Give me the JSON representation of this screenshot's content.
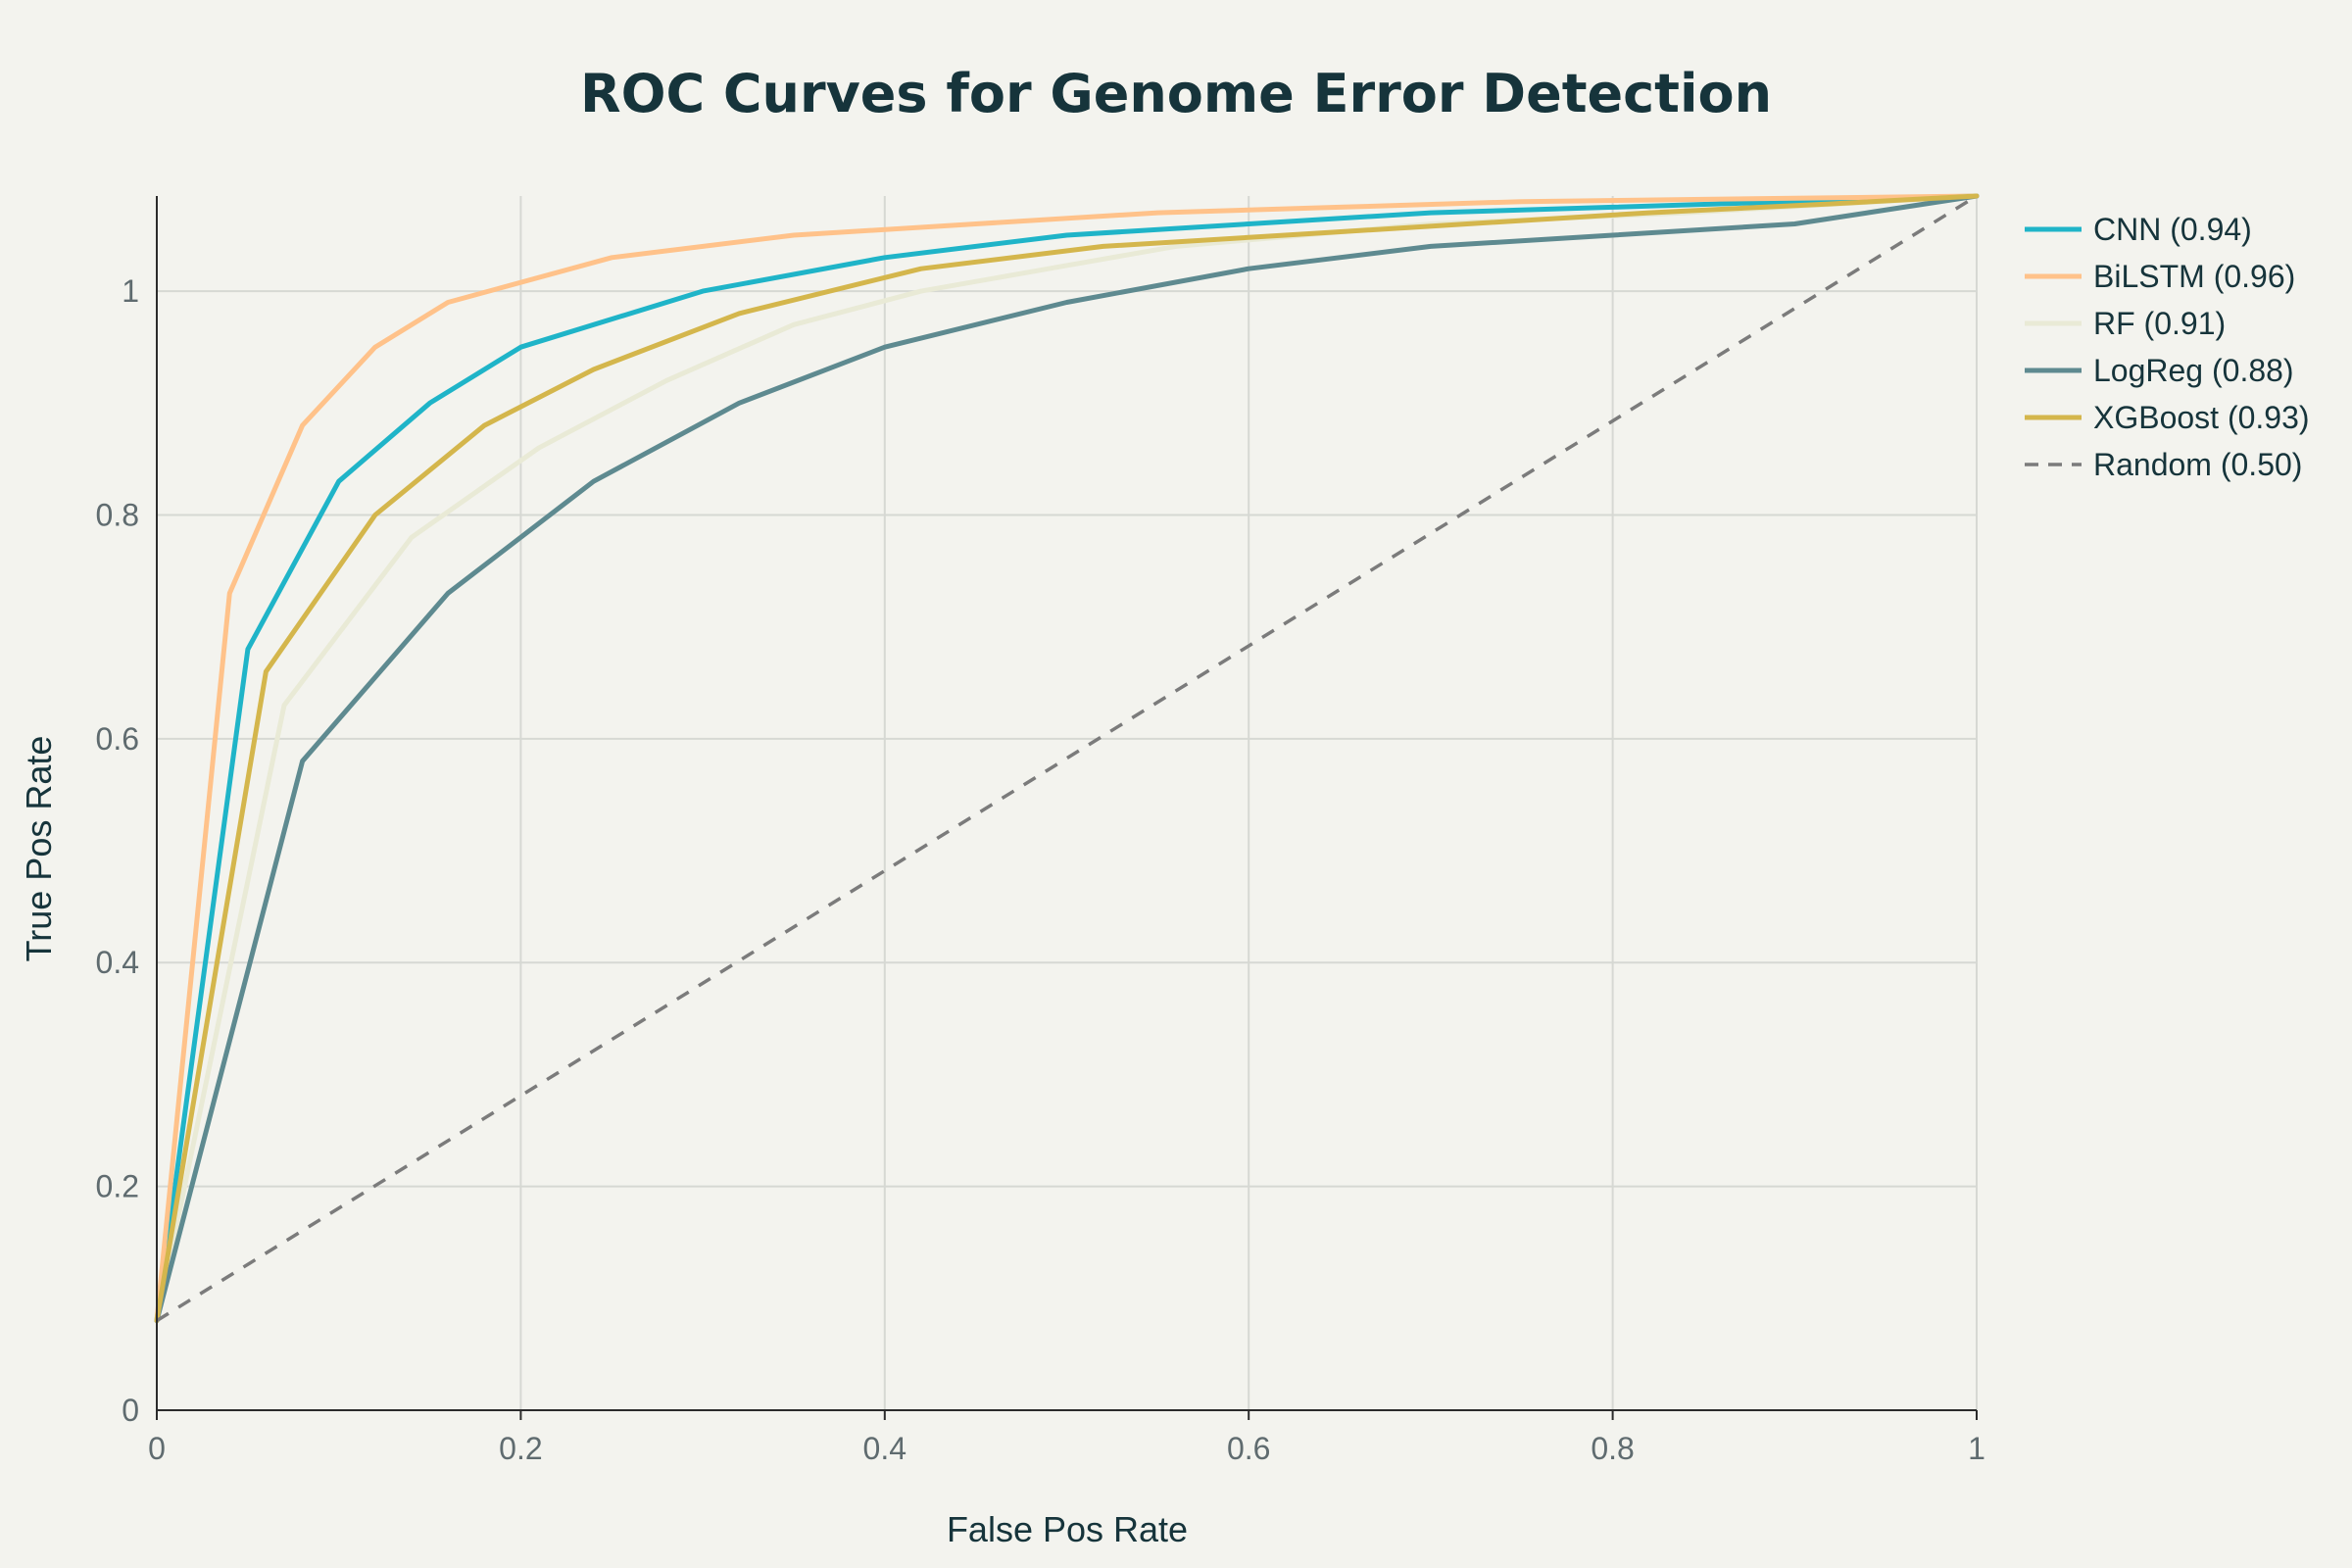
{
  "chart_data": {
    "type": "line",
    "title": "ROC Curves for Genome Error Detection",
    "xlabel": "False Pos Rate",
    "ylabel": "True Pos Rate",
    "xlim": [
      0,
      1
    ],
    "ylim": [
      0,
      1.085
    ],
    "xticks": [
      0,
      0.2,
      0.4,
      0.6,
      0.8,
      1
    ],
    "xtick_labels": [
      "0",
      "0.2",
      "0.4",
      "0.6",
      "0.8",
      "1"
    ],
    "yticks": [
      0,
      0.2,
      0.4,
      0.6,
      0.8,
      1
    ],
    "ytick_labels": [
      "0",
      "0.2",
      "0.4",
      "0.6",
      "0.8",
      "1"
    ],
    "grid": true,
    "legend_position": "right",
    "series": [
      {
        "name": "CNN (0.94)",
        "color": "#1fb4c8",
        "dash": "solid",
        "x": [
          0,
          0.05,
          0.1,
          0.15,
          0.2,
          0.3,
          0.4,
          0.5,
          0.6,
          0.7,
          0.8,
          0.9,
          1
        ],
        "y": [
          0.08,
          0.68,
          0.83,
          0.9,
          0.95,
          1.0,
          1.03,
          1.05,
          1.06,
          1.07,
          1.075,
          1.08,
          1.085
        ]
      },
      {
        "name": "BiLSTM (0.96)",
        "color": "#ffc28a",
        "dash": "solid",
        "x": [
          0,
          0.04,
          0.08,
          0.12,
          0.16,
          0.25,
          0.35,
          0.45,
          0.55,
          0.65,
          0.75,
          0.85,
          1
        ],
        "y": [
          0.08,
          0.73,
          0.88,
          0.95,
          0.99,
          1.03,
          1.05,
          1.06,
          1.07,
          1.075,
          1.08,
          1.082,
          1.085
        ]
      },
      {
        "name": "RF (0.91)",
        "color": "#e9ead6",
        "dash": "solid",
        "x": [
          0,
          0.07,
          0.14,
          0.21,
          0.28,
          0.35,
          0.42,
          0.49,
          0.56,
          0.63,
          0.7,
          0.84,
          1
        ],
        "y": [
          0.08,
          0.63,
          0.78,
          0.86,
          0.92,
          0.97,
          1.0,
          1.02,
          1.04,
          1.05,
          1.06,
          1.07,
          1.085
        ]
      },
      {
        "name": "LogReg (0.88)",
        "color": "#5e8a90",
        "dash": "solid",
        "x": [
          0,
          0.08,
          0.16,
          0.24,
          0.32,
          0.4,
          0.5,
          0.6,
          0.7,
          0.8,
          0.9,
          1
        ],
        "y": [
          0.08,
          0.58,
          0.73,
          0.83,
          0.9,
          0.95,
          0.99,
          1.02,
          1.04,
          1.05,
          1.06,
          1.085
        ]
      },
      {
        "name": "XGBoost (0.93)",
        "color": "#d4b64c",
        "dash": "solid",
        "x": [
          0,
          0.06,
          0.12,
          0.18,
          0.24,
          0.32,
          0.42,
          0.52,
          0.62,
          0.72,
          0.82,
          0.92,
          1
        ],
        "y": [
          0.08,
          0.66,
          0.8,
          0.88,
          0.93,
          0.98,
          1.02,
          1.04,
          1.05,
          1.06,
          1.07,
          1.078,
          1.085
        ]
      },
      {
        "name": "Random (0.50)",
        "color": "#7b7b7b",
        "dash": "dashed",
        "x": [
          0,
          1
        ],
        "y": [
          0.08,
          1.085
        ]
      }
    ]
  }
}
